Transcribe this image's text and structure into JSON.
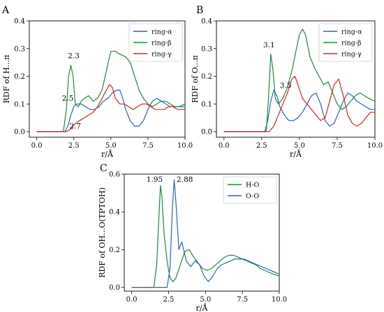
{
  "chart_data": [
    {
      "type": "line",
      "panel": "A",
      "xlabel": "r/Å",
      "ylabel": "RDF of H...π",
      "xlim": [
        -0.5,
        10
      ],
      "ylim": [
        -0.02,
        0.4
      ],
      "xticks": [
        0.0,
        2.5,
        5.0,
        7.5,
        10.0
      ],
      "xtick_labels": [
        "0.0",
        "2.5",
        "5.0",
        "7.5",
        "10.0"
      ],
      "yticks": [
        0.0,
        0.1,
        0.2,
        0.3,
        0.4
      ],
      "ytick_labels": [
        "0.0",
        "0.1",
        "0.2",
        "0.3",
        "0.4"
      ],
      "legend": "top-right",
      "series": [
        {
          "name": "ring-α",
          "color": "#2a65b0",
          "x": [
            0,
            1.9,
            2.1,
            2.3,
            2.5,
            2.7,
            3.0,
            3.3,
            3.6,
            3.9,
            4.2,
            4.5,
            4.8,
            5.1,
            5.4,
            5.6,
            5.8,
            6.0,
            6.3,
            6.6,
            6.9,
            7.2,
            7.5,
            7.8,
            8.1,
            8.4,
            8.7,
            9.0,
            9.3,
            9.6,
            10.0
          ],
          "y": [
            0,
            0,
            0.02,
            0.06,
            0.09,
            0.1,
            0.1,
            0.09,
            0.08,
            0.08,
            0.09,
            0.11,
            0.12,
            0.14,
            0.15,
            0.15,
            0.12,
            0.08,
            0.04,
            0.02,
            0.02,
            0.04,
            0.08,
            0.11,
            0.12,
            0.11,
            0.1,
            0.09,
            0.09,
            0.09,
            0.1
          ]
        },
        {
          "name": "ring-β",
          "color": "#1d8a3c",
          "x": [
            0,
            1.8,
            2.0,
            2.15,
            2.3,
            2.45,
            2.6,
            2.8,
            3.0,
            3.2,
            3.5,
            3.8,
            4.1,
            4.4,
            4.7,
            5.0,
            5.3,
            5.6,
            6.0,
            6.3,
            6.6,
            6.9,
            7.2,
            7.5,
            7.8,
            8.1,
            8.4,
            8.7,
            9.0,
            9.3,
            9.6,
            10.0
          ],
          "y": [
            0,
            0,
            0.08,
            0.2,
            0.24,
            0.2,
            0.1,
            0.09,
            0.11,
            0.12,
            0.13,
            0.11,
            0.12,
            0.15,
            0.22,
            0.29,
            0.29,
            0.28,
            0.27,
            0.25,
            0.2,
            0.15,
            0.12,
            0.1,
            0.09,
            0.1,
            0.11,
            0.11,
            0.1,
            0.09,
            0.09,
            0.09
          ]
        },
        {
          "name": "ring-γ",
          "color": "#e02020",
          "x": [
            0,
            2.0,
            2.3,
            2.6,
            2.9,
            3.2,
            3.5,
            3.8,
            4.1,
            4.4,
            4.7,
            4.9,
            5.1,
            5.3,
            5.6,
            5.9,
            6.2,
            6.5,
            6.8,
            7.1,
            7.4,
            7.7,
            8.0,
            8.3,
            8.6,
            8.9,
            9.2,
            9.5,
            10.0
          ],
          "y": [
            0,
            0,
            0.01,
            0.03,
            0.04,
            0.05,
            0.06,
            0.07,
            0.09,
            0.12,
            0.15,
            0.17,
            0.16,
            0.12,
            0.1,
            0.1,
            0.09,
            0.08,
            0.09,
            0.1,
            0.1,
            0.09,
            0.08,
            0.08,
            0.08,
            0.09,
            0.09,
            0.08,
            0.08
          ]
        }
      ],
      "annotations": [
        {
          "text": "2.3",
          "x": 2.1,
          "y": 0.265
        },
        {
          "text": "2.5",
          "x": 1.7,
          "y": 0.112
        },
        {
          "text": "2.7",
          "x": 2.2,
          "y": 0.012
        }
      ]
    },
    {
      "type": "line",
      "panel": "B",
      "xlabel": "r/Å",
      "ylabel": "RDF of O...π",
      "xlim": [
        -0.5,
        10
      ],
      "ylim": [
        -0.02,
        0.4
      ],
      "xticks": [
        0.0,
        2.5,
        5.0,
        7.5,
        10.0
      ],
      "xtick_labels": [
        "0.0",
        "2.5",
        "5.0",
        "7.5",
        "10.0"
      ],
      "yticks": [
        0.0,
        0.1,
        0.2,
        0.3,
        0.4
      ],
      "ytick_labels": [
        "0.0",
        "0.1",
        "0.2",
        "0.3",
        "0.4"
      ],
      "legend": "top-right",
      "series": [
        {
          "name": "ring-α",
          "color": "#2a65b0",
          "x": [
            0,
            2.7,
            2.9,
            3.1,
            3.3,
            3.5,
            3.7,
            4.0,
            4.3,
            4.6,
            4.9,
            5.2,
            5.5,
            5.8,
            6.1,
            6.4,
            6.7,
            7.0,
            7.3,
            7.6,
            7.9,
            8.2,
            8.5,
            8.8,
            9.1,
            9.4,
            9.7,
            10.0
          ],
          "y": [
            0,
            0,
            0.04,
            0.11,
            0.15,
            0.13,
            0.09,
            0.06,
            0.04,
            0.04,
            0.05,
            0.07,
            0.1,
            0.13,
            0.14,
            0.1,
            0.04,
            0.02,
            0.03,
            0.07,
            0.11,
            0.14,
            0.13,
            0.11,
            0.1,
            0.09,
            0.08,
            0.08
          ]
        },
        {
          "name": "ring-β",
          "color": "#1d8a3c",
          "x": [
            0,
            2.8,
            2.95,
            3.1,
            3.25,
            3.4,
            3.6,
            3.9,
            4.2,
            4.5,
            4.8,
            5.0,
            5.2,
            5.4,
            5.7,
            6.0,
            6.3,
            6.6,
            6.9,
            7.2,
            7.5,
            7.8,
            8.1,
            8.4,
            8.7,
            9.0,
            9.3,
            9.6,
            10.0
          ],
          "y": [
            0,
            0,
            0.12,
            0.28,
            0.22,
            0.12,
            0.1,
            0.12,
            0.16,
            0.22,
            0.3,
            0.35,
            0.37,
            0.35,
            0.27,
            0.23,
            0.2,
            0.17,
            0.18,
            0.14,
            0.1,
            0.08,
            0.09,
            0.11,
            0.13,
            0.14,
            0.13,
            0.12,
            0.11
          ]
        },
        {
          "name": "ring-γ",
          "color": "#e02020",
          "x": [
            0,
            3.0,
            3.3,
            3.6,
            3.9,
            4.2,
            4.5,
            4.7,
            4.9,
            5.2,
            5.5,
            5.8,
            6.1,
            6.4,
            6.7,
            7.0,
            7.3,
            7.6,
            7.9,
            8.2,
            8.5,
            8.8,
            9.1,
            9.4,
            9.7,
            10.0
          ],
          "y": [
            0,
            0,
            0.02,
            0.06,
            0.1,
            0.14,
            0.19,
            0.2,
            0.17,
            0.12,
            0.1,
            0.08,
            0.06,
            0.04,
            0.05,
            0.11,
            0.17,
            0.19,
            0.13,
            0.06,
            0.03,
            0.02,
            0.03,
            0.05,
            0.07,
            0.07
          ]
        }
      ],
      "annotations": [
        {
          "text": "3.1",
          "x": 2.6,
          "y": 0.305
        },
        {
          "text": "3.5",
          "x": 3.7,
          "y": 0.158
        }
      ]
    },
    {
      "type": "line",
      "panel": "C",
      "xlabel": "r/Å",
      "ylabel": "RDF of OH...O(TPTOH)",
      "xlim": [
        -0.5,
        10
      ],
      "ylim": [
        -0.02,
        0.6
      ],
      "xticks": [
        0.0,
        2.5,
        5.0,
        7.5,
        10.0
      ],
      "xtick_labels": [
        "0.0",
        "2.5",
        "5.0",
        "7.5",
        "10.0"
      ],
      "yticks": [
        0.0,
        0.2,
        0.4,
        0.6
      ],
      "ytick_labels": [
        "0.0",
        "0.2",
        "0.4",
        "0.6"
      ],
      "legend": "top-right",
      "series": [
        {
          "name": "H-O",
          "color": "#1d8a3c",
          "x": [
            0,
            1.5,
            1.7,
            1.85,
            1.95,
            2.05,
            2.2,
            2.4,
            2.6,
            2.8,
            3.0,
            3.3,
            3.6,
            3.9,
            4.2,
            4.5,
            4.8,
            5.1,
            5.4,
            5.7,
            6.0,
            6.3,
            6.6,
            6.9,
            7.2,
            7.5,
            7.8,
            8.1,
            8.4,
            8.7,
            9.0,
            9.3,
            9.6,
            10.0
          ],
          "y": [
            0,
            0,
            0.12,
            0.38,
            0.54,
            0.48,
            0.28,
            0.14,
            0.05,
            0.03,
            0.05,
            0.12,
            0.19,
            0.2,
            0.16,
            0.13,
            0.1,
            0.09,
            0.1,
            0.12,
            0.14,
            0.16,
            0.17,
            0.17,
            0.16,
            0.15,
            0.14,
            0.13,
            0.12,
            0.1,
            0.09,
            0.08,
            0.07,
            0.06
          ]
        },
        {
          "name": "O-O",
          "color": "#2a65b0",
          "x": [
            0,
            2.4,
            2.6,
            2.75,
            2.88,
            3.0,
            3.2,
            3.4,
            3.7,
            4.0,
            4.3,
            4.6,
            4.9,
            5.2,
            5.5,
            5.8,
            6.1,
            6.4,
            6.7,
            7.0,
            7.3,
            7.6,
            7.9,
            8.2,
            8.5,
            8.8,
            9.1,
            9.4,
            9.7,
            10.0
          ],
          "y": [
            0,
            0,
            0.1,
            0.4,
            0.57,
            0.45,
            0.2,
            0.24,
            0.14,
            0.11,
            0.14,
            0.12,
            0.06,
            0.03,
            0.06,
            0.1,
            0.12,
            0.13,
            0.14,
            0.15,
            0.15,
            0.15,
            0.14,
            0.13,
            0.12,
            0.11,
            0.1,
            0.09,
            0.08,
            0.07
          ]
        }
      ],
      "annotations": [
        {
          "text": "1.95",
          "x": 1.0,
          "y": 0.56
        },
        {
          "text": "2.88",
          "x": 3.05,
          "y": 0.56
        }
      ]
    }
  ]
}
